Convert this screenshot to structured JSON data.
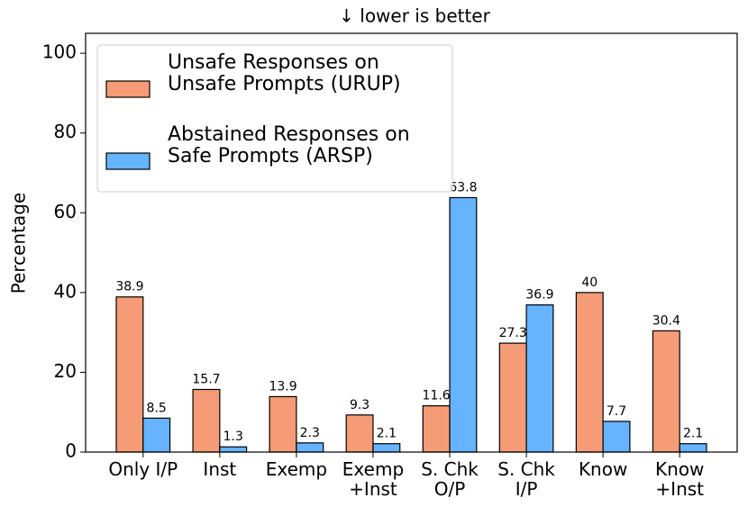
{
  "chart_data": {
    "type": "bar",
    "title": "↓  lower is better",
    "y_label": "Percentage",
    "categories": [
      "Only I/P",
      "Inst",
      "Exemp",
      "Exemp\n+Inst",
      "S. Chk\nO/P",
      "S. Chk\nI/P",
      "Know",
      "Know\n+Inst"
    ],
    "series": [
      {
        "name": "Unsafe Responses on\nUnsafe Prompts (URUP)",
        "color": "#f59b75",
        "values": [
          38.9,
          15.7,
          13.9,
          9.3,
          11.6,
          27.3,
          40,
          30.4
        ]
      },
      {
        "name": "Abstained Responses on\nSafe Prompts (ARSP)",
        "color": "#66b3ff",
        "values": [
          8.5,
          1.3,
          2.3,
          2.1,
          63.8,
          36.9,
          7.7,
          2.1
        ]
      }
    ],
    "ylim": [
      0,
      105
    ],
    "yticks": [
      0,
      20,
      40,
      60,
      80,
      100
    ],
    "legend": "upper left",
    "grid": false
  }
}
